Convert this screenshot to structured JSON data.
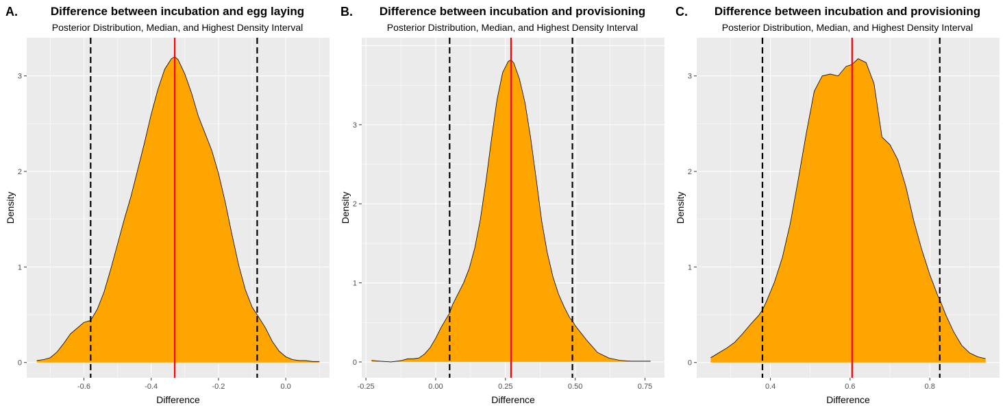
{
  "chart_data": [
    {
      "type": "area",
      "panel_label": "A.",
      "title": "Difference between incubation and egg laying",
      "subtitle": "Posterior Distribution, Median, and Highest Density Interval",
      "xlabel": "Difference",
      "ylabel": "Density",
      "xlim": [
        -0.77,
        0.13
      ],
      "ylim": [
        -0.16,
        3.4
      ],
      "xticks": [
        -0.6,
        -0.4,
        -0.2,
        0.0
      ],
      "xtick_labels": [
        "-0.6",
        "-0.4",
        "-0.2",
        "0.0"
      ],
      "yticks": [
        0,
        1,
        2,
        3
      ],
      "ytick_labels": [
        "0",
        "1",
        "2",
        "3"
      ],
      "median": -0.33,
      "hdi": [
        -0.58,
        -0.085
      ],
      "fill_color": "#FFA500",
      "median_color": "#FF0000",
      "hdi_color": "#000000",
      "grid": true,
      "x": [
        -0.74,
        -0.72,
        -0.7,
        -0.68,
        -0.66,
        -0.64,
        -0.62,
        -0.6,
        -0.58,
        -0.56,
        -0.54,
        -0.52,
        -0.5,
        -0.48,
        -0.46,
        -0.44,
        -0.42,
        -0.4,
        -0.38,
        -0.36,
        -0.34,
        -0.33,
        -0.32,
        -0.3,
        -0.28,
        -0.26,
        -0.24,
        -0.22,
        -0.2,
        -0.18,
        -0.16,
        -0.14,
        -0.12,
        -0.1,
        -0.085,
        -0.06,
        -0.04,
        -0.02,
        0.0,
        0.02,
        0.04,
        0.06,
        0.08,
        0.1
      ],
      "density": [
        0.02,
        0.03,
        0.05,
        0.11,
        0.2,
        0.3,
        0.36,
        0.42,
        0.44,
        0.56,
        0.74,
        0.98,
        1.24,
        1.5,
        1.74,
        2.02,
        2.3,
        2.6,
        2.86,
        3.07,
        3.18,
        3.2,
        3.17,
        3.02,
        2.82,
        2.58,
        2.4,
        2.22,
        1.98,
        1.68,
        1.34,
        1.02,
        0.76,
        0.58,
        0.5,
        0.36,
        0.22,
        0.12,
        0.06,
        0.03,
        0.02,
        0.02,
        0.01,
        0.01
      ]
    },
    {
      "type": "area",
      "panel_label": "B.",
      "title": "Difference between incubation and provisioning",
      "subtitle": "Posterior Distribution, Median, and Highest Density Interval",
      "xlabel": "Difference",
      "ylabel": "Density",
      "xlim": [
        -0.265,
        0.82
      ],
      "ylim": [
        -0.2,
        4.1
      ],
      "xticks": [
        -0.25,
        0.0,
        0.25,
        0.5,
        0.75
      ],
      "xtick_labels": [
        "-0.25",
        "0.00",
        "0.25",
        "0.50",
        "0.75"
      ],
      "yticks": [
        0,
        1,
        2,
        3
      ],
      "ytick_labels": [
        "0",
        "1",
        "2",
        "3"
      ],
      "median": 0.27,
      "hdi": [
        0.05,
        0.49
      ],
      "fill_color": "#FFA500",
      "median_color": "#FF0000",
      "hdi_color": "#000000",
      "grid": true,
      "x": [
        -0.23,
        -0.2,
        -0.16,
        -0.12,
        -0.1,
        -0.08,
        -0.06,
        -0.04,
        -0.02,
        0.0,
        0.02,
        0.04,
        0.05,
        0.06,
        0.08,
        0.1,
        0.12,
        0.14,
        0.16,
        0.18,
        0.2,
        0.22,
        0.24,
        0.26,
        0.27,
        0.28,
        0.3,
        0.32,
        0.34,
        0.36,
        0.38,
        0.4,
        0.42,
        0.44,
        0.46,
        0.48,
        0.49,
        0.5,
        0.54,
        0.58,
        0.62,
        0.66,
        0.7,
        0.74,
        0.77
      ],
      "density": [
        0.02,
        0.01,
        0.0,
        0.02,
        0.04,
        0.04,
        0.05,
        0.1,
        0.18,
        0.3,
        0.44,
        0.56,
        0.62,
        0.72,
        0.86,
        1.0,
        1.18,
        1.44,
        1.8,
        2.28,
        2.82,
        3.32,
        3.66,
        3.8,
        3.82,
        3.78,
        3.58,
        3.28,
        2.84,
        2.32,
        1.78,
        1.38,
        1.08,
        0.86,
        0.7,
        0.56,
        0.52,
        0.46,
        0.28,
        0.12,
        0.05,
        0.02,
        0.01,
        0.01,
        0.01
      ]
    },
    {
      "type": "area",
      "panel_label": "C.",
      "title": "Difference between incubation and provisioning",
      "subtitle": "Posterior Distribution, Median, and Highest Density Interval",
      "xlabel": "Difference",
      "ylabel": "Density",
      "xlim": [
        0.215,
        0.975
      ],
      "ylim": [
        -0.16,
        3.4
      ],
      "xticks": [
        0.4,
        0.6,
        0.8
      ],
      "xtick_labels": [
        "0.4",
        "0.6",
        "0.8"
      ],
      "yticks": [
        0,
        1,
        2,
        3
      ],
      "ytick_labels": [
        "0",
        "1",
        "2",
        "3"
      ],
      "median": 0.605,
      "hdi": [
        0.38,
        0.825
      ],
      "fill_color": "#FFA500",
      "median_color": "#FF0000",
      "hdi_color": "#000000",
      "grid": true,
      "x": [
        0.25,
        0.27,
        0.29,
        0.31,
        0.33,
        0.35,
        0.37,
        0.38,
        0.39,
        0.41,
        0.43,
        0.45,
        0.47,
        0.49,
        0.51,
        0.53,
        0.55,
        0.57,
        0.59,
        0.605,
        0.62,
        0.64,
        0.66,
        0.68,
        0.7,
        0.72,
        0.74,
        0.76,
        0.78,
        0.8,
        0.82,
        0.825,
        0.84,
        0.86,
        0.88,
        0.9,
        0.92,
        0.94
      ],
      "density": [
        0.05,
        0.1,
        0.15,
        0.21,
        0.3,
        0.4,
        0.49,
        0.55,
        0.64,
        0.84,
        1.1,
        1.46,
        1.92,
        2.4,
        2.84,
        3.0,
        3.02,
        3.0,
        3.1,
        3.12,
        3.18,
        3.14,
        2.92,
        2.36,
        2.28,
        2.12,
        1.84,
        1.48,
        1.18,
        0.92,
        0.7,
        0.66,
        0.5,
        0.32,
        0.18,
        0.1,
        0.06,
        0.04
      ]
    }
  ]
}
